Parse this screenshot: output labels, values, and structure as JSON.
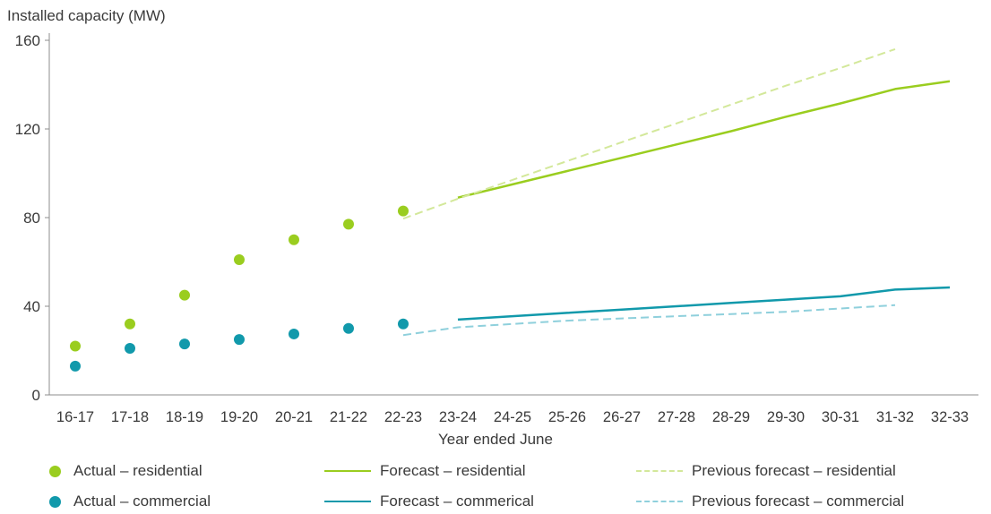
{
  "chart_data": {
    "type": "line",
    "ylabel": "Installed capacity (MW)",
    "xlabel": "Year ended June",
    "ylim": [
      0,
      160
    ],
    "yticks": [
      0,
      40,
      80,
      120,
      160
    ],
    "categories": [
      "16-17",
      "17-18",
      "18-19",
      "19-20",
      "20-21",
      "21-22",
      "22-23",
      "23-24",
      "24-25",
      "25-26",
      "26-27",
      "27-28",
      "28-29",
      "29-30",
      "30-31",
      "31-32",
      "32-33"
    ],
    "grid": false,
    "legend_position": "bottom",
    "series": [
      {
        "name": "Actual – residential",
        "style": "markers",
        "color": "#9acd1f",
        "values": [
          22,
          32,
          45,
          61,
          70,
          77,
          83,
          null,
          null,
          null,
          null,
          null,
          null,
          null,
          null,
          null,
          null
        ]
      },
      {
        "name": "Actual – commercial",
        "style": "markers",
        "color": "#1199ab",
        "values": [
          13,
          21,
          23,
          25,
          27.5,
          30,
          32,
          null,
          null,
          null,
          null,
          null,
          null,
          null,
          null,
          null,
          null
        ]
      },
      {
        "name": "Forecast – residential",
        "style": "solid",
        "color": "#9acd1f",
        "values": [
          null,
          null,
          null,
          null,
          null,
          null,
          null,
          89,
          95,
          101,
          107,
          113,
          119,
          125.5,
          131.5,
          138,
          141.5
        ]
      },
      {
        "name": "Forecast – commerical",
        "style": "solid",
        "color": "#1199ab",
        "values": [
          null,
          null,
          null,
          null,
          null,
          null,
          null,
          34,
          35.5,
          37,
          38.5,
          40,
          41.5,
          43,
          44.5,
          47.5,
          48.5
        ]
      },
      {
        "name": "Previous forecast – residential",
        "style": "dashed",
        "color": "#d3e89a",
        "values": [
          null,
          null,
          null,
          null,
          null,
          null,
          79.5,
          88.5,
          97,
          105.5,
          114,
          122.5,
          131,
          139.5,
          147.5,
          156,
          null
        ]
      },
      {
        "name": "Previous forecast – commercial",
        "style": "dashed",
        "color": "#8fd0dc",
        "values": [
          null,
          null,
          null,
          null,
          null,
          null,
          27,
          30.5,
          32,
          33.5,
          34.5,
          35.5,
          36.5,
          37.5,
          39,
          40.5,
          null
        ]
      }
    ]
  }
}
